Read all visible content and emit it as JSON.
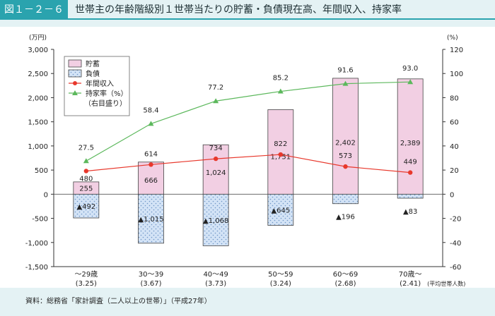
{
  "figure_no": "図１－２－６",
  "title": "世帯主の年齢階級別１世帯当たりの貯蓄・負債現在高、年間収入、持家率",
  "source": "資料：総務省「家計調査（二人以上の世帯）」（平成27年）",
  "chart_data": {
    "type": "bar",
    "categories": [
      "～29歳",
      "30～39",
      "40～49",
      "50～59",
      "60～69",
      "70歳～"
    ],
    "category_sublabels": [
      "(3.25)",
      "(3.67)",
      "(3.73)",
      "(3.24)",
      "(2.68)",
      "(2.41)"
    ],
    "category_note": "(平均世帯人数)",
    "y_left": {
      "unit": "(万円)",
      "min": -1500,
      "max": 3000,
      "step": 500,
      "ticks": [
        "3,000",
        "2,500",
        "2,000",
        "1,500",
        "1,000",
        "500",
        "0",
        "-500",
        "-1,000",
        "-1,500"
      ]
    },
    "y_right": {
      "unit": "(%)",
      "min": -60,
      "max": 120,
      "step": 20,
      "ticks": [
        "120",
        "100",
        "80",
        "60",
        "40",
        "20",
        "0",
        "-20",
        "-40",
        "-60"
      ]
    },
    "series": [
      {
        "name": "貯蓄",
        "type": "bar",
        "color": "#f2cfe3",
        "values": [
          255,
          666,
          1024,
          1751,
          2402,
          2389
        ],
        "labels": [
          "255",
          "666",
          "1,024",
          "1,751",
          "2,402",
          "2,389"
        ]
      },
      {
        "name": "負債",
        "type": "bar",
        "color": "#cfe0f4",
        "values": [
          -492,
          -1015,
          -1068,
          -645,
          -196,
          -83
        ],
        "labels": [
          "▲492",
          "▲1,015",
          "▲1,068",
          "▲645",
          "▲196",
          "▲83"
        ]
      },
      {
        "name": "年間収入",
        "type": "line",
        "axis": "left",
        "color": "#e8382c",
        "values": [
          480,
          614,
          734,
          822,
          573,
          449
        ],
        "labels": [
          "480",
          "614",
          "734",
          "822",
          "573",
          "449"
        ]
      },
      {
        "name": "持家率（%）",
        "legend_sub": "（右目盛り）",
        "type": "line",
        "axis": "right",
        "color": "#5cb85c",
        "values": [
          27.5,
          58.4,
          77.2,
          85.2,
          91.6,
          93.0
        ],
        "labels": [
          "27.5",
          "58.4",
          "77.2",
          "85.2",
          "91.6",
          "93.0"
        ]
      }
    ],
    "legend_position": "top-left",
    "grid": false
  }
}
